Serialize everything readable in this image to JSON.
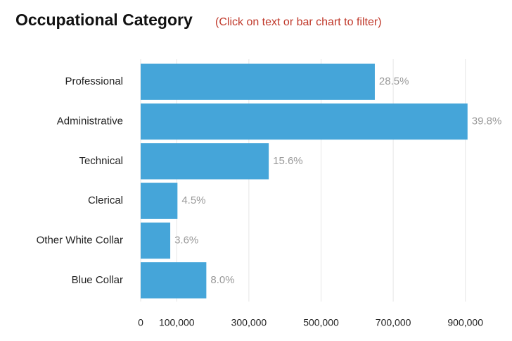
{
  "chart_data": {
    "type": "bar",
    "orientation": "horizontal",
    "title": "Occupational Category",
    "subtitle": "(Click on text or bar chart to filter)",
    "categories": [
      "Professional",
      "Administrative",
      "Technical",
      "Clerical",
      "Other White Collar",
      "Blue Collar"
    ],
    "values": [
      649000,
      906000,
      355000,
      102000,
      82000,
      182000
    ],
    "value_labels": [
      "28.5%",
      "39.8%",
      "15.6%",
      "4.5%",
      "3.6%",
      "8.0%"
    ],
    "color": "#45a5d9",
    "xlim": [
      0,
      1000000
    ],
    "xticks": [
      0,
      {
        "value": 100000,
        "label": "100,000"
      },
      {
        "value": 300000,
        "label": "300,000"
      },
      {
        "value": 500000,
        "label": "500,000"
      },
      {
        "value": 700000,
        "label": "700,000"
      },
      {
        "value": 900000,
        "label": "900,000"
      }
    ],
    "grid": true
  }
}
